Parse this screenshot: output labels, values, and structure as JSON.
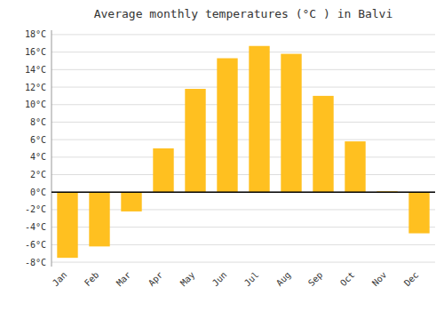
{
  "chart_data": {
    "type": "bar",
    "title": "Average monthly temperatures (°C ) in Balvi",
    "categories": [
      "Jan",
      "Feb",
      "Mar",
      "Apr",
      "May",
      "Jun",
      "Jul",
      "Aug",
      "Sep",
      "Oct",
      "Nov",
      "Dec"
    ],
    "values": [
      -7.5,
      -6.2,
      -2.2,
      5.0,
      11.8,
      15.3,
      16.7,
      15.8,
      11.0,
      5.8,
      0.1,
      -4.7
    ],
    "color": "#FFC020",
    "ylim": [
      -8.5,
      18.5
    ],
    "yticks": [
      {
        "value": -8,
        "label": "-8°C"
      },
      {
        "value": -6,
        "label": "-6°C"
      },
      {
        "value": -4,
        "label": "-4°C"
      },
      {
        "value": -2,
        "label": "-2°C"
      },
      {
        "value": 0,
        "label": "0°C"
      },
      {
        "value": 2,
        "label": "2°C"
      },
      {
        "value": 4,
        "label": "4°C"
      },
      {
        "value": 6,
        "label": "6°C"
      },
      {
        "value": 8,
        "label": "8°C"
      },
      {
        "value": 10,
        "label": "10°C"
      },
      {
        "value": 12,
        "label": "12°C"
      },
      {
        "value": 14,
        "label": "14°C"
      },
      {
        "value": 16,
        "label": "16°C"
      },
      {
        "value": 18,
        "label": "18°C"
      }
    ],
    "grid": true
  }
}
